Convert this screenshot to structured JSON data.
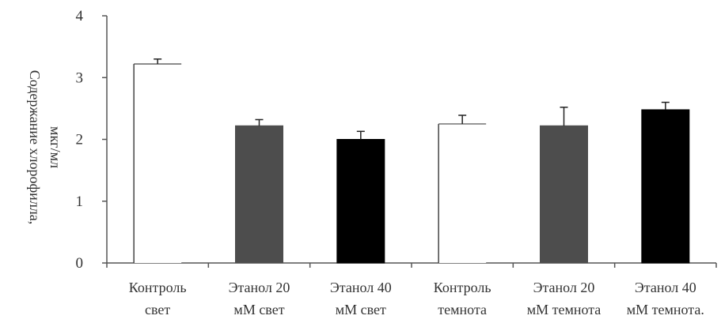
{
  "chart_data": {
    "type": "bar",
    "title": "",
    "xlabel": "",
    "ylabel": [
      "Содержание хлорофилла,",
      "мкг/мл"
    ],
    "ylim": [
      0,
      4
    ],
    "yticks": [
      "0",
      "1",
      "2",
      "3",
      "4"
    ],
    "grid": false,
    "categories": [
      [
        "Контроль",
        "свет"
      ],
      [
        "Этанол 20",
        "мМ свет"
      ],
      [
        "Этанол 40",
        "мМ свет"
      ],
      [
        "Контроль",
        "темнота"
      ],
      [
        "Этанол 20",
        "мМ темнота"
      ],
      [
        "Этанол 40",
        "мМ темнота."
      ]
    ],
    "values": [
      3.22,
      2.22,
      2.0,
      2.25,
      2.22,
      2.48
    ],
    "errors": [
      0.08,
      0.1,
      0.13,
      0.14,
      0.3,
      0.12
    ],
    "bar_colors": [
      "#ffffff",
      "#4d4d4d",
      "#000000",
      "#ffffff",
      "#4d4d4d",
      "#000000"
    ]
  }
}
